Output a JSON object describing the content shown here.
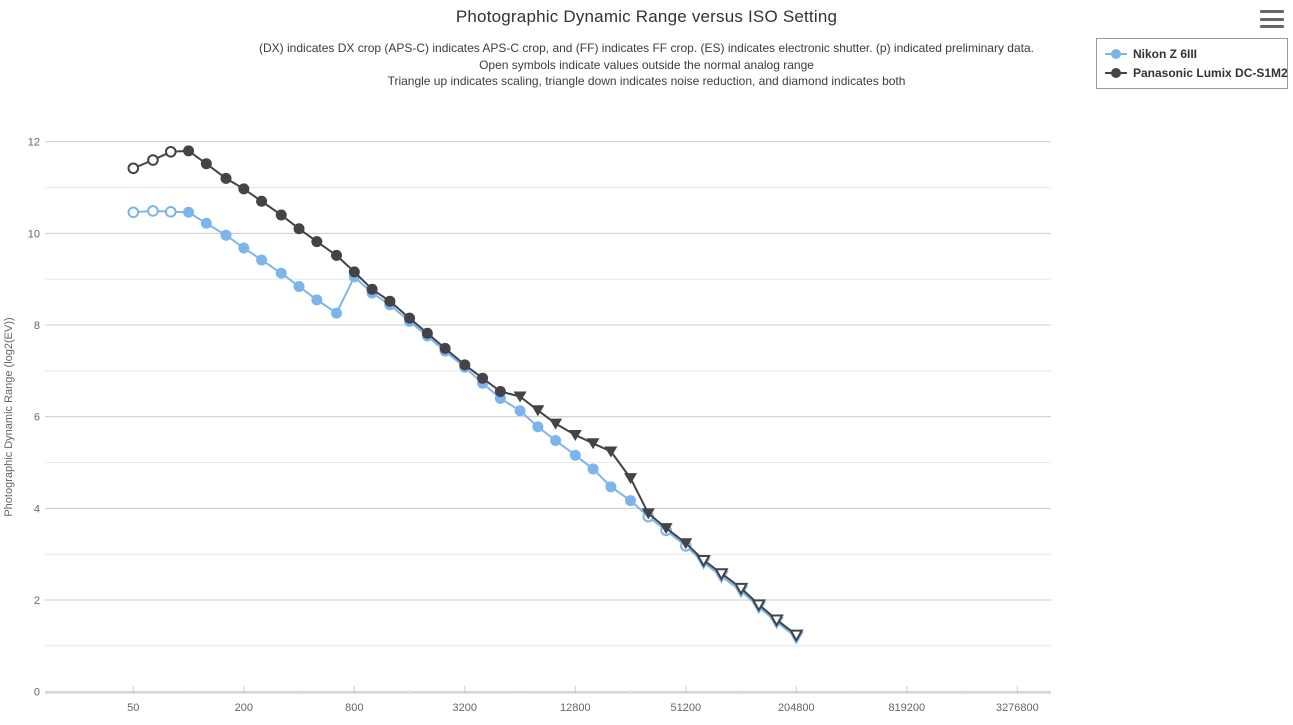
{
  "header": {
    "title": "Photographic Dynamic Range versus ISO Setting",
    "subtitle_lines": [
      "(DX) indicates DX crop (APS-C) indicates APS-C crop, and (FF) indicates FF crop. (ES) indicates electronic shutter. (p) indicated preliminary data.",
      "Open symbols indicate values outside the normal analog range",
      "Triangle up indicates scaling, triangle down indicates noise reduction, and diamond indicates both"
    ]
  },
  "legend": {
    "items": [
      {
        "label": "Nikon Z 6III",
        "color": "#7cb5ec"
      },
      {
        "label": "Panasonic Lumix DC-S1M2",
        "color": "#434348"
      }
    ]
  },
  "chart_data": {
    "type": "line",
    "title": "Photographic Dynamic Range versus ISO Setting",
    "xlabel": "",
    "ylabel": "Photographic Dynamic Range (log2(EV))",
    "x_scale": "log2",
    "x": [
      50,
      64,
      80,
      100,
      125,
      160,
      200,
      250,
      320,
      400,
      500,
      640,
      800,
      1000,
      1250,
      1600,
      2000,
      2500,
      3200,
      4000,
      5000,
      6400,
      8000,
      10000,
      12800,
      16000,
      20000,
      25600,
      32000,
      40000,
      51200,
      64000,
      80000,
      102400,
      128000,
      160000,
      204800
    ],
    "series": [
      {
        "name": "Nikon Z 6III",
        "color": "#7cb5ec",
        "values": [
          10.46,
          10.49,
          10.47,
          10.46,
          10.22,
          9.96,
          9.68,
          9.42,
          9.13,
          8.84,
          8.55,
          8.26,
          9.05,
          8.7,
          8.44,
          8.08,
          7.76,
          7.43,
          7.08,
          6.73,
          6.4,
          6.13,
          5.78,
          5.48,
          5.16,
          4.86,
          4.47,
          4.17,
          3.82,
          3.52,
          3.18,
          2.82,
          2.52,
          2.2,
          1.85,
          1.52,
          1.19
        ],
        "markers": [
          "O",
          "O",
          "O",
          "o",
          "o",
          "o",
          "o",
          "o",
          "o",
          "o",
          "o",
          "o",
          "o",
          "o",
          "o",
          "o",
          "o",
          "o",
          "o",
          "o",
          "o",
          "o",
          "o",
          "o",
          "o",
          "o",
          "o",
          "o",
          "O",
          "O",
          "O",
          "V",
          "V",
          "V",
          "V",
          "V",
          "V"
        ]
      },
      {
        "name": "Panasonic Lumix DC-S1M2",
        "color": "#434348",
        "values": [
          11.42,
          11.6,
          11.78,
          11.8,
          11.52,
          11.2,
          10.97,
          10.7,
          10.4,
          10.1,
          9.82,
          9.52,
          9.16,
          8.78,
          8.52,
          8.15,
          7.82,
          7.49,
          7.13,
          6.84,
          6.55,
          6.44,
          6.14,
          5.85,
          5.6,
          5.42,
          5.24,
          4.66,
          3.89,
          3.57,
          3.24,
          2.87,
          2.58,
          2.26,
          1.9,
          1.57,
          1.24
        ],
        "markers": [
          "O",
          "O",
          "O",
          "o",
          "o",
          "o",
          "o",
          "o",
          "o",
          "o",
          "o",
          "o",
          "o",
          "o",
          "o",
          "o",
          "o",
          "o",
          "o",
          "o",
          "o",
          "v",
          "v",
          "v",
          "v",
          "v",
          "v",
          "v",
          "v",
          "v",
          "v",
          "V",
          "V",
          "V",
          "V",
          "V",
          "V"
        ]
      }
    ],
    "marker_legend": {
      "o": "filled circle",
      "O": "open circle",
      "v": "filled triangle-down",
      "V": "open triangle-down"
    },
    "x_tick_labels": [
      "50",
      "200",
      "800",
      "3200",
      "12800",
      "51200",
      "204800",
      "819200",
      "3276800"
    ],
    "x_tick_values": [
      50,
      200,
      800,
      3200,
      12800,
      51200,
      204800,
      819200,
      3276800
    ],
    "x_minor_tick_values": [
      100,
      400,
      1600,
      6400,
      25600,
      102400,
      409600,
      1638400
    ],
    "y_tick_labels": [
      "0",
      "2",
      "4",
      "6",
      "8",
      "10",
      "12"
    ],
    "y_tick_values": [
      0,
      2,
      4,
      6,
      8,
      10,
      12
    ],
    "y_gridline_step": 1,
    "ylim": [
      0,
      12.7
    ],
    "grid": "horizontal-only",
    "legend_position": "top-right",
    "colors": {
      "major_gridline": "#c9c9c9",
      "minor_gridline": "#e8e8e8",
      "axis_line": "#cccccc",
      "tick_label": "#666666",
      "axis_title": "#666666"
    }
  }
}
